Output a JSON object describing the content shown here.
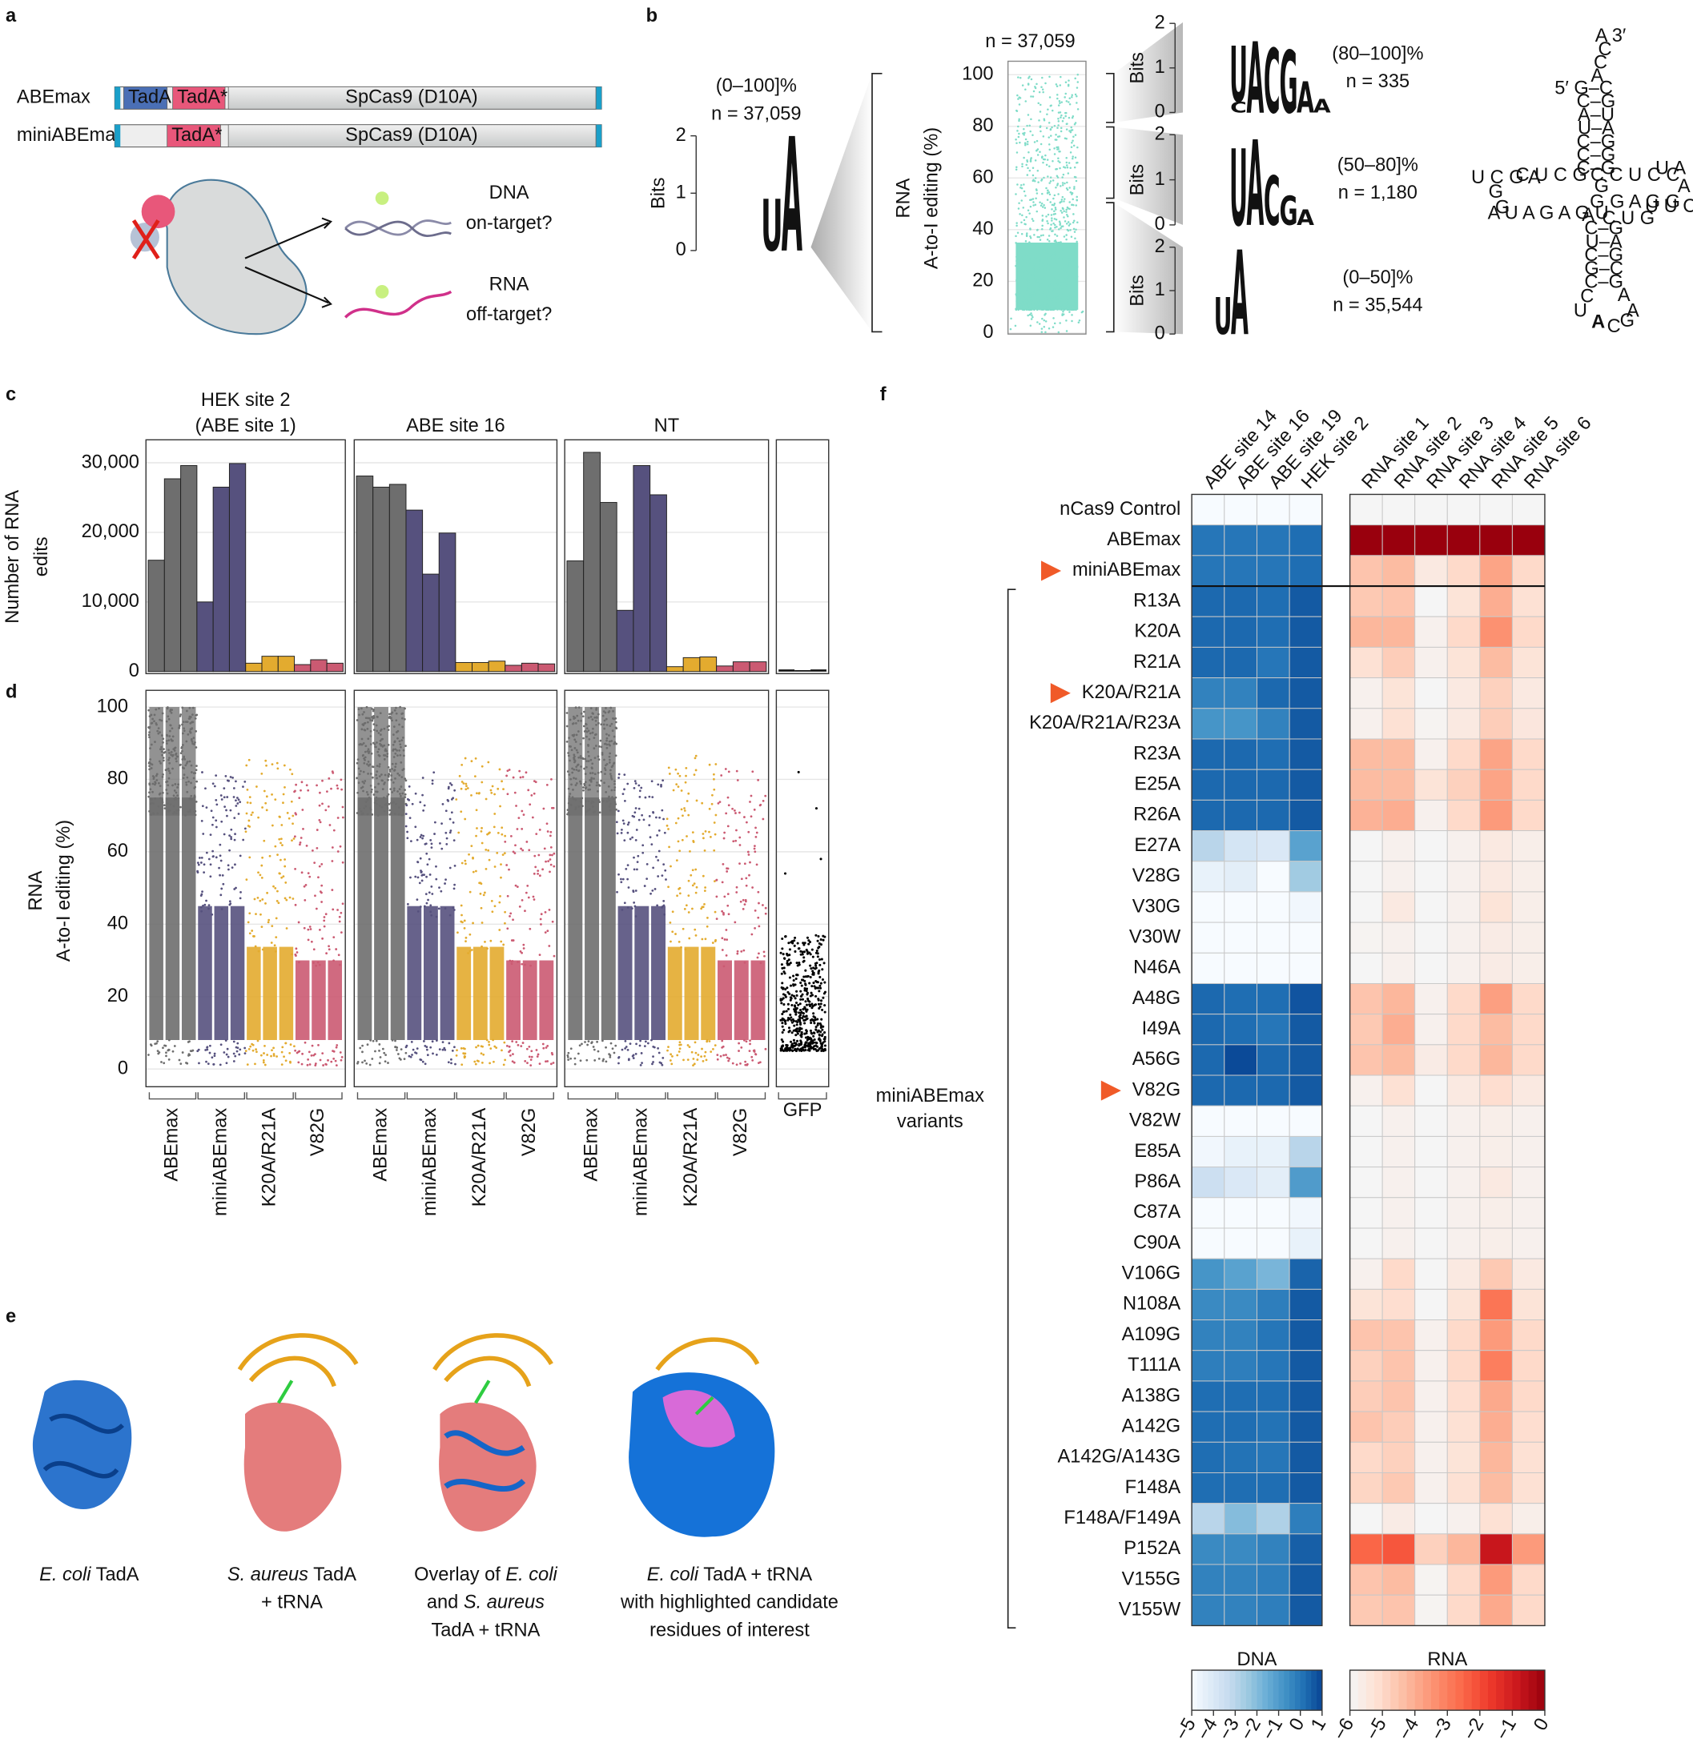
{
  "panels": [
    "a",
    "b",
    "c",
    "d",
    "e",
    "f"
  ],
  "a": {
    "constructs": [
      {
        "name": "ABEmax",
        "domains": [
          "TadA",
          "TadA*",
          "SpCas9 (D10A)"
        ]
      },
      {
        "name": "miniABEmax",
        "domains": [
          "TadA*",
          "SpCas9 (D10A)"
        ]
      }
    ],
    "dna": [
      "DNA",
      "on-target?"
    ],
    "rna": [
      "RNA",
      "off-target?"
    ]
  },
  "b": {
    "letter_colors": {
      "A": "#22b322",
      "C": "#1f5ed6",
      "G": "#f5a20a",
      "U": "#d11f1f"
    },
    "main": {
      "range": "(0–100]%",
      "n": "n = 37,059",
      "ylabel": "Bits",
      "ylim": [
        0,
        2
      ],
      "yticks": [
        0,
        1,
        2
      ],
      "positions": [
        [
          {
            "letter": "U",
            "bits": 0.9
          }
        ],
        [
          {
            "letter": "A",
            "bits": 2.0
          }
        ]
      ]
    },
    "scatter": {
      "n": "n = 37,059",
      "ylabel": [
        "RNA",
        "A-to-I editing (%)"
      ],
      "ylim": [
        -0.4,
        105.2
      ],
      "yticks": [
        0,
        20,
        40,
        60,
        80,
        100
      ],
      "color": "#7fdcc8"
    },
    "bins": [
      {
        "range": "(80–100]%",
        "n": "n = 335",
        "ylabel": "Bits",
        "ylim": [
          0,
          2
        ],
        "yticks": [
          0,
          1,
          2
        ],
        "positions": [
          [
            {
              "letter": "C",
              "bits": 0.25
            },
            {
              "letter": "U",
              "bits": 1.5
            }
          ],
          [
            {
              "letter": "A",
              "bits": 1.6
            }
          ],
          [
            {
              "letter": "C",
              "bits": 1.45
            }
          ],
          [
            {
              "letter": "G",
              "bits": 1.4
            }
          ],
          [
            {
              "letter": "A",
              "bits": 0.7
            }
          ],
          [
            {
              "letter": "A",
              "bits": 0.3
            }
          ]
        ]
      },
      {
        "range": "(50–80]%",
        "n": "n = 1,180",
        "ylabel": "Bits",
        "ylim": [
          0,
          2
        ],
        "yticks": [
          0,
          1,
          2
        ],
        "positions": [
          [
            {
              "letter": "U",
              "bits": 1.7
            }
          ],
          [
            {
              "letter": "A",
              "bits": 1.9
            }
          ],
          [
            {
              "letter": "C",
              "bits": 1.1
            }
          ],
          [
            {
              "letter": "G",
              "bits": 0.65
            }
          ],
          [
            {
              "letter": "A",
              "bits": 0.35
            }
          ]
        ]
      },
      {
        "range": "(0–50]%",
        "n": "n = 35,544",
        "ylabel": "Bits",
        "ylim": [
          0,
          2
        ],
        "yticks": [
          0,
          1,
          2
        ],
        "positions": [
          [
            {
              "letter": "U",
              "bits": 0.85
            }
          ],
          [
            {
              "letter": "A",
              "bits": 1.95
            }
          ]
        ]
      }
    ],
    "trna": {
      "black": [
        "A 3′",
        "C",
        "C",
        "A",
        "5′ G–C",
        "C–G",
        "A–U",
        "U–A",
        "C–G",
        "C–G",
        "C–G",
        "U C G A",
        "C U C G",
        "G",
        "G",
        "A U A G A G U",
        "A",
        "C C U C C",
        "U A",
        "G G A G G",
        "U U C",
        "A",
        "C U G",
        "G",
        "C–G",
        "U–A",
        "C–G",
        "G–C",
        "C–G"
      ],
      "red": [
        "C",
        "A",
        "U",
        "A",
        "A",
        "C",
        "G"
      ]
    }
  },
  "variants": [
    {
      "name": "ABEmax",
      "color": "#6e6e6e"
    },
    {
      "name": "miniABEmax",
      "color": "#56517e"
    },
    {
      "name": "K20A/R21A",
      "color": "#e3ab2f"
    },
    {
      "name": "V82G",
      "color": "#cb5a72"
    }
  ],
  "c": {
    "type": "bar",
    "ylabel": [
      "Number of RNA",
      "edits"
    ],
    "ylim": [
      -300,
      33300
    ],
    "yticks": [
      0,
      {
        "value": 10000,
        "label": "10,000"
      },
      {
        "value": 20000,
        "label": "20,000"
      },
      {
        "value": 30000,
        "label": "30,000"
      }
    ],
    "grid": true,
    "groups": [
      {
        "title": [
          "HEK site 2",
          "(ABE site 1)"
        ],
        "values": [
          [
            16000,
            27700,
            29600
          ],
          [
            10000,
            26500,
            29900
          ],
          [
            1200,
            2200,
            2200
          ],
          [
            1000,
            1700,
            1200
          ]
        ]
      },
      {
        "title": [
          "ABE site 16"
        ],
        "values": [
          [
            28100,
            26500,
            26900
          ],
          [
            23200,
            14000,
            19900
          ],
          [
            1300,
            1300,
            1500
          ],
          [
            900,
            1200,
            1100
          ]
        ]
      },
      {
        "title": [
          "NT"
        ],
        "values": [
          [
            15900,
            31500,
            24300
          ],
          [
            8800,
            29600,
            25400
          ],
          [
            700,
            2000,
            2100
          ],
          [
            800,
            1400,
            1400
          ]
        ]
      }
    ],
    "control": {
      "color": "#111111",
      "values": [
        300,
        200,
        300
      ]
    }
  },
  "d": {
    "type": "scatter",
    "ylabel": [
      "RNA",
      "A-to-I editing (%)"
    ],
    "ylim": [
      -4.9,
      104.6
    ],
    "yticks": [
      0,
      20,
      40,
      60,
      80,
      100
    ],
    "grid": true,
    "control": "GFP",
    "control_color": "#000000"
  },
  "e": {
    "captions": [
      [
        [
          {
            "text": "E. coli",
            "italic": true
          },
          {
            "text": " TadA"
          }
        ]
      ],
      [
        [
          {
            "text": "S. aureus",
            "italic": true
          },
          {
            "text": " TadA"
          }
        ],
        [
          {
            "text": "+ tRNA"
          }
        ]
      ],
      [
        [
          {
            "text": "Overlay of "
          },
          {
            "text": "E. coli",
            "italic": true
          }
        ],
        [
          {
            "text": "and "
          },
          {
            "text": "S. aureus",
            "italic": true
          }
        ],
        [
          {
            "text": "TadA + tRNA"
          }
        ]
      ],
      [
        [
          {
            "text": "E. coli",
            "italic": true
          },
          {
            "text": " TadA + tRNA"
          }
        ],
        [
          {
            "text": "with highlighted candidate"
          }
        ],
        [
          {
            "text": "residues of interest"
          }
        ]
      ]
    ]
  },
  "f": {
    "type": "heatmap",
    "dna_columns": [
      "ABE site 14",
      "ABE site 16",
      "ABE site 19",
      "HEK site 2"
    ],
    "rna_columns": [
      "RNA site 1",
      "RNA site 2",
      "RNA site 3",
      "RNA site 4",
      "RNA site 5",
      "RNA site 6"
    ],
    "group_label": [
      "miniABEmax",
      "variants"
    ],
    "dna": {
      "label": "DNA",
      "lim": [
        -5,
        1
      ],
      "ticks": [
        {
          "value": -5,
          "label": "−5"
        },
        {
          "value": -4,
          "label": "−4"
        },
        {
          "value": -3,
          "label": "−3"
        },
        {
          "value": -2,
          "label": "−2"
        },
        {
          "value": -1,
          "label": "−1"
        },
        0,
        1
      ],
      "colormap": [
        "#f7fbff",
        "#deebf7",
        "#c6dbef",
        "#9ecae1",
        "#6baed6",
        "#4292c6",
        "#2171b5",
        "#084594"
      ]
    },
    "rna": {
      "label": "RNA",
      "lim": [
        -6,
        0
      ],
      "ticks": [
        {
          "value": -6,
          "label": "−6"
        },
        {
          "value": -5,
          "label": "−5"
        },
        {
          "value": -4,
          "label": "−4"
        },
        {
          "value": -3,
          "label": "−3"
        },
        {
          "value": -2,
          "label": "−2"
        },
        {
          "value": -1,
          "label": "−1"
        },
        0
      ],
      "colormap": [
        "#f5f5f5",
        "#fee0d2",
        "#fcbba1",
        "#fc9272",
        "#fb6a4a",
        "#ef3b2c",
        "#cb181d",
        "#99000d"
      ]
    },
    "rows": [
      {
        "label": "nCas9 Control",
        "dna": [
          -5,
          -5,
          -5,
          -5
        ],
        "rna": [
          -6,
          -6,
          -6,
          -6,
          -6,
          -6
        ]
      },
      {
        "label": "ABEmax",
        "dna": [
          0,
          0,
          0,
          0.2
        ],
        "rna": [
          0,
          0,
          0,
          0,
          0,
          0
        ]
      },
      {
        "label": "miniABEmax",
        "marked": true,
        "dna": [
          0,
          0,
          0,
          0.2
        ],
        "rna": [
          -4.5,
          -4.3,
          -5.5,
          -5,
          -3.8,
          -5
        ]
      },
      {
        "label": "R13A",
        "dna": [
          0.3,
          0.3,
          0.2,
          0.6
        ],
        "rna": [
          -4.6,
          -4.5,
          -6,
          -5.3,
          -4,
          -5.2
        ]
      },
      {
        "label": "K20A",
        "dna": [
          0.3,
          0.3,
          0.2,
          0.6
        ],
        "rna": [
          -4.2,
          -4.2,
          -5.8,
          -5,
          -3.4,
          -5
        ]
      },
      {
        "label": "R21A",
        "dna": [
          0.3,
          0.3,
          0,
          0.6
        ],
        "rna": [
          -5.2,
          -4.7,
          -5.8,
          -5.3,
          -4.3,
          -5.3
        ]
      },
      {
        "label": "K20A/R21A",
        "marked": true,
        "dna": [
          -0.3,
          -0.3,
          0.3,
          0.6
        ],
        "rna": [
          -5.8,
          -5.3,
          -6,
          -5.5,
          -4.8,
          -5.5
        ]
      },
      {
        "label": "K20A/R21A/R23A",
        "dna": [
          -0.8,
          -0.8,
          -0.3,
          0.6
        ],
        "rna": [
          -5.8,
          -5.2,
          -5.9,
          -5.5,
          -4.7,
          -5.4
        ]
      },
      {
        "label": "R23A",
        "dna": [
          0.3,
          0.3,
          0.2,
          0.6
        ],
        "rna": [
          -4.3,
          -4.3,
          -5.8,
          -5,
          -3.8,
          -5
        ]
      },
      {
        "label": "E25A",
        "dna": [
          0.3,
          0.3,
          0.3,
          0.6
        ],
        "rna": [
          -4.3,
          -4.3,
          -5.3,
          -4.8,
          -3.8,
          -5
        ]
      },
      {
        "label": "R26A",
        "dna": [
          0.3,
          0.3,
          0.3,
          0.6
        ],
        "rna": [
          -4.1,
          -4,
          -5.8,
          -5,
          -3.6,
          -5
        ]
      },
      {
        "label": "E27A",
        "dna": [
          -3,
          -3.8,
          -4,
          -1.2
        ],
        "rna": [
          -6,
          -5.8,
          -6,
          -5.8,
          -5.5,
          -5.7
        ]
      },
      {
        "label": "V28G",
        "dna": [
          -4.5,
          -4.3,
          -5,
          -2.5
        ],
        "rna": [
          -6,
          -5.8,
          -6,
          -5.8,
          -5.5,
          -5.7
        ]
      },
      {
        "label": "V30G",
        "dna": [
          -5,
          -5,
          -5,
          -4.8
        ],
        "rna": [
          -6,
          -5.5,
          -6,
          -5.8,
          -5.3,
          -5.7
        ]
      },
      {
        "label": "V30W",
        "dna": [
          -5,
          -5,
          -5,
          -5
        ],
        "rna": [
          -5.9,
          -5.8,
          -6,
          -5.8,
          -5.6,
          -5.7
        ]
      },
      {
        "label": "N46A",
        "dna": [
          -5,
          -5,
          -5,
          -5
        ],
        "rna": [
          -6,
          -5.8,
          -6,
          -5.8,
          -5.6,
          -5.7
        ]
      },
      {
        "label": "A48G",
        "dna": [
          0.3,
          0.2,
          0.2,
          0.7
        ],
        "rna": [
          -4.5,
          -4.2,
          -5.8,
          -5,
          -3.7,
          -5
        ]
      },
      {
        "label": "I49A",
        "dna": [
          0.3,
          0.2,
          0,
          0.6
        ],
        "rna": [
          -4.6,
          -4,
          -5.8,
          -5,
          -4.3,
          -5
        ]
      },
      {
        "label": "A56G",
        "dna": [
          0.3,
          0.9,
          0.3,
          0.6
        ],
        "rna": [
          -4.5,
          -4.3,
          -5.6,
          -5,
          -4.2,
          -5
        ]
      },
      {
        "label": "V82G",
        "marked": true,
        "dna": [
          0.3,
          0.3,
          0.3,
          0.6
        ],
        "rna": [
          -5.8,
          -5.2,
          -6,
          -5.5,
          -5.1,
          -5.5
        ]
      },
      {
        "label": "V82W",
        "dna": [
          -5,
          -5,
          -5,
          -5
        ],
        "rna": [
          -6,
          -5.8,
          -6,
          -5.8,
          -5.7,
          -5.8
        ]
      },
      {
        "label": "E85A",
        "dna": [
          -4.8,
          -4.5,
          -4.5,
          -3
        ],
        "rna": [
          -6,
          -5.8,
          -6,
          -5.8,
          -5.7,
          -5.8
        ]
      },
      {
        "label": "P86A",
        "dna": [
          -3.5,
          -4,
          -4.3,
          -1
        ],
        "rna": [
          -6,
          -5.8,
          -6,
          -5.8,
          -5.5,
          -5.8
        ]
      },
      {
        "label": "C87A",
        "dna": [
          -5,
          -5,
          -5,
          -4.8
        ],
        "rna": [
          -6,
          -5.8,
          -6,
          -5.8,
          -5.7,
          -5.8
        ]
      },
      {
        "label": "C90A",
        "dna": [
          -5,
          -5,
          -5,
          -4.5
        ],
        "rna": [
          -6,
          -5.8,
          -6,
          -5.8,
          -5.7,
          -5.8
        ]
      },
      {
        "label": "V106G",
        "dna": [
          -0.8,
          -1.2,
          -1.8,
          0.4
        ],
        "rna": [
          -5.8,
          -5,
          -6,
          -5.5,
          -4.6,
          -5.5
        ]
      },
      {
        "label": "N108A",
        "dna": [
          -0.5,
          -0.5,
          -0.2,
          0.6
        ],
        "rna": [
          -5.3,
          -5.1,
          -6,
          -5.3,
          -2.8,
          -5.3
        ]
      },
      {
        "label": "A109G",
        "dna": [
          -0.3,
          -0.3,
          0,
          0.6
        ],
        "rna": [
          -4.5,
          -4.5,
          -5.8,
          -5,
          -3.6,
          -5
        ]
      },
      {
        "label": "T111A",
        "dna": [
          -0.2,
          -0.2,
          0,
          0.6
        ],
        "rna": [
          -4.8,
          -4.5,
          -5.8,
          -5,
          -3,
          -5
        ]
      },
      {
        "label": "A138G",
        "dna": [
          0.2,
          0.2,
          0.2,
          0.6
        ],
        "rna": [
          -4.7,
          -4.5,
          -5.8,
          -5.1,
          -3.9,
          -5
        ]
      },
      {
        "label": "A142G",
        "dna": [
          0.2,
          0.2,
          0.1,
          0.6
        ],
        "rna": [
          -4.5,
          -4.7,
          -5.8,
          -5.2,
          -4,
          -5.1
        ]
      },
      {
        "label": "A142G/A143G",
        "dna": [
          0.2,
          0.1,
          0,
          0.6
        ],
        "rna": [
          -5,
          -4.8,
          -5.8,
          -5.3,
          -4.2,
          -5.2
        ]
      },
      {
        "label": "F148A",
        "dna": [
          0.2,
          0.2,
          0.2,
          0.6
        ],
        "rna": [
          -4.9,
          -4.6,
          -5.8,
          -5.2,
          -4.3,
          -5.2
        ]
      },
      {
        "label": "F148A/F149A",
        "dna": [
          -3,
          -2,
          -2.8,
          -0.2
        ],
        "rna": [
          -6,
          -5.6,
          -6,
          -5.8,
          -5.2,
          -5.7
        ]
      },
      {
        "label": "P152A",
        "dna": [
          -0.5,
          -0.5,
          -0.3,
          0.5
        ],
        "rna": [
          -2.5,
          -2.2,
          -4.8,
          -4.2,
          -0.8,
          -3.6
        ]
      },
      {
        "label": "V155G",
        "dna": [
          -0.3,
          -0.3,
          -0.2,
          0.6
        ],
        "rna": [
          -4.5,
          -4.3,
          -5.9,
          -5,
          -3.6,
          -5
        ]
      },
      {
        "label": "V155W",
        "dna": [
          -0.3,
          -0.3,
          -0.2,
          0.6
        ],
        "rna": [
          -4.6,
          -4.5,
          -5.9,
          -5,
          -3.9,
          -5
        ]
      }
    ]
  }
}
